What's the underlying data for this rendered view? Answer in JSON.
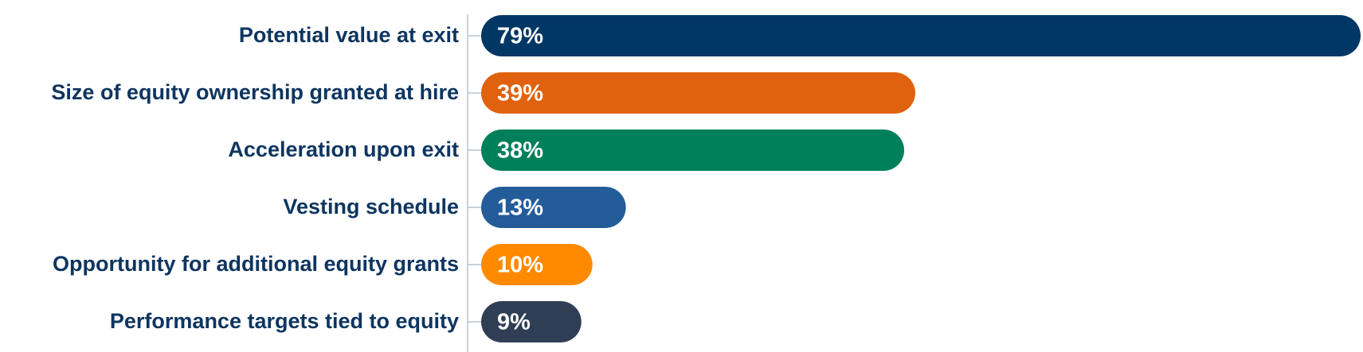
{
  "chart_data": {
    "type": "bar",
    "orientation": "horizontal",
    "categories": [
      "Potential value at exit",
      "Size of equity ownership granted at hire",
      "Acceleration upon exit",
      "Vesting schedule",
      "Opportunity for additional equity grants",
      "Performance targets tied to equity"
    ],
    "values": [
      79,
      39,
      38,
      13,
      10,
      9
    ],
    "value_labels": [
      "79%",
      "39%",
      "38%",
      "13%",
      "10%",
      "9%"
    ],
    "colors": [
      "#003764",
      "#e0620f",
      "#00805a",
      "#235c99",
      "#ff8a00",
      "#2f3e55"
    ]
  }
}
